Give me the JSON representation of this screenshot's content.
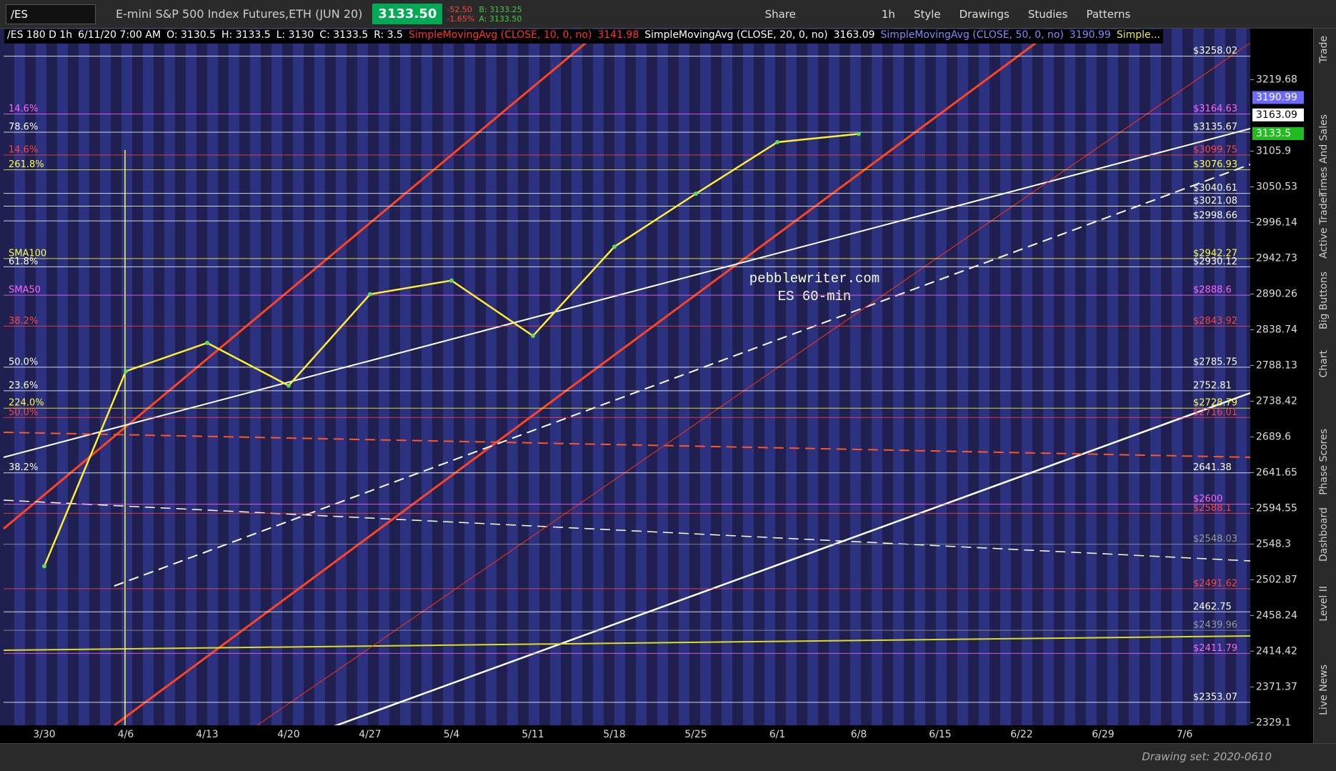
{
  "ui": {
    "symbol": "/ES",
    "instrument": "E-mini S&P 500 Index Futures,ETH (JUN 20)",
    "last": "3133.50",
    "net_change": "-52.50",
    "pct_change": "-1.65%",
    "bid": "B: 3133.25",
    "ask": "A: 3133.50",
    "buttons": [
      "Share",
      "1h",
      "Style",
      "Drawings",
      "Studies",
      "Patterns"
    ],
    "info": [
      "/ES 180 D 1h",
      "6/11/20 7:00 AM",
      "O: 3130.5",
      "H: 3133.5",
      "L: 3130",
      "C: 3133.5",
      "R: 3.5",
      "SimpleMovingAvg (CLOSE, 10, 0, no)",
      "3141.98",
      "SimpleMovingAvg (CLOSE, 20, 0, no)",
      "3163.09",
      "SimpleMovingAvg (CLOSE, 50, 0, no)",
      "3190.99",
      "Simple..."
    ],
    "side_tabs": [
      "Trade",
      "Times And Sales",
      "Active Trader",
      "Big Buttons",
      "Chart",
      "Phase Scores",
      "Dashboard",
      "Level II",
      "Live News"
    ],
    "watermark": [
      "pebblewriter.com",
      "ES 60-min"
    ],
    "drawing_set": "Drawing set: 2020-0610"
  },
  "chart_data": {
    "type": "line",
    "log_scale": true,
    "color": "#ffee33",
    "categories": [
      "3/30",
      "4/6",
      "4/13",
      "4/20",
      "4/27",
      "5/4",
      "5/11",
      "5/18",
      "5/25",
      "6/1",
      "6/8",
      "6/15",
      "6/22",
      "6/29",
      "7/6"
    ],
    "values": [
      2520,
      2780,
      2820,
      2760,
      2890,
      2910,
      2830,
      2960,
      3040,
      3120,
      3133,
      null,
      null,
      null,
      null
    ],
    "ylim": [
      2326,
      3280
    ],
    "yticks": [
      3219.68,
      3105.9,
      3050.53,
      2996.14,
      2942.73,
      2890.26,
      2838.74,
      2788.13,
      2738.42,
      2689.6,
      2641.65,
      2594.55,
      2548.3,
      2502.87,
      2458.24,
      2414.42,
      2371.37,
      2329.1
    ],
    "price_tags": [
      {
        "value": 3190.99,
        "color": "#6a6aff"
      },
      {
        "value": 3163.09,
        "color": "#ffffff"
      },
      {
        "value": 3133.5,
        "color": "#22bb22"
      }
    ],
    "levels": [
      {
        "value": 3258.02,
        "label": "$3258.02",
        "color": "#ffffff"
      },
      {
        "value": 3164.63,
        "label": "$3164.63",
        "color": "#ff66ff",
        "left": "14.6%"
      },
      {
        "value": 3135.67,
        "label": "$3135.67",
        "color": "#ffffff",
        "left": "78.6%"
      },
      {
        "value": 3099.75,
        "label": "$3099.75",
        "color": "#ff4444",
        "left": "14.6%"
      },
      {
        "value": 3076.93,
        "label": "$3076.93",
        "color": "#ffff44",
        "left": "261.8%"
      },
      {
        "value": 3040.61,
        "label": "$3040.61",
        "color": "#ffffff"
      },
      {
        "value": 3021.08,
        "label": "$3021.08",
        "color": "#ffffff"
      },
      {
        "value": 2998.66,
        "label": "$2998.66",
        "color": "#ffffff"
      },
      {
        "value": 2942.27,
        "label": "$2942.27",
        "color": "#ffff44",
        "left": "SMA100"
      },
      {
        "value": 2930.12,
        "label": "$2930.12",
        "color": "#ffffff",
        "left": "61.8%"
      },
      {
        "value": 2888.6,
        "label": "$2888.6",
        "color": "#ff66ff",
        "left": "SMA50"
      },
      {
        "value": 2843.92,
        "label": "$2843.92",
        "color": "#ff4444",
        "left": "38.2%"
      },
      {
        "value": 2785.75,
        "label": "$2785.75",
        "color": "#ffffff",
        "left": "50.0%"
      },
      {
        "value": 2752.81,
        "label": "2752.81",
        "color": "#ffffff",
        "left": "23.6%"
      },
      {
        "value": 2728.79,
        "label": "$2728.79",
        "color": "#ffff44",
        "left": "224.0%"
      },
      {
        "value": 2716.01,
        "label": "$2716.01",
        "color": "#ff4444",
        "left": "50.0%"
      },
      {
        "value": 2641.38,
        "label": "2641.38",
        "color": "#ffffff",
        "left": "38.2%"
      },
      {
        "value": 2600,
        "label": "$2600",
        "color": "#ff66ff"
      },
      {
        "value": 2588.1,
        "label": "$2588.1",
        "color": "#ff4444"
      },
      {
        "value": 2548.03,
        "label": "$2548.03",
        "color": "#999999"
      },
      {
        "value": 2491.62,
        "label": "$2491.62",
        "color": "#ff4444"
      },
      {
        "value": 2462.75,
        "label": "2462.75",
        "color": "#ffffff"
      },
      {
        "value": 2439.96,
        "label": "$2439.96",
        "color": "#999999"
      },
      {
        "value": 2411.79,
        "label": "$2411.79",
        "color": "#ff66ff"
      },
      {
        "value": 2353.07,
        "label": "$2353.07",
        "color": "#ffffff"
      }
    ]
  }
}
